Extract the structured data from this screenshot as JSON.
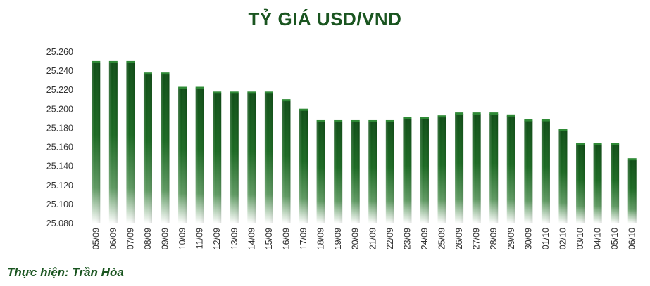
{
  "chart_data": {
    "type": "bar",
    "title": "TỶ GIÁ USD/VND",
    "xlabel": "",
    "ylabel": "",
    "ylim": [
      25080,
      25260
    ],
    "yticks": [
      "25.260",
      "25.240",
      "25.220",
      "25.200",
      "25.180",
      "25.160",
      "25.140",
      "25.120",
      "25.100",
      "25.080"
    ],
    "grid": false,
    "legend": "none",
    "categories": [
      "05/09",
      "06/09",
      "07/09",
      "08/09",
      "09/09",
      "10/09",
      "11/09",
      "12/09",
      "13/09",
      "14/09",
      "15/09",
      "16/09",
      "17/09",
      "18/09",
      "19/09",
      "20/09",
      "21/09",
      "22/09",
      "23/09",
      "24/09",
      "25/09",
      "26/09",
      "27/09",
      "28/09",
      "29/09",
      "30/09",
      "01/10",
      "02/10",
      "03/10",
      "04/10",
      "05/10",
      "06/10"
    ],
    "values": [
      25249,
      25249,
      25249,
      25237,
      25237,
      25222,
      25222,
      25217,
      25217,
      25217,
      25217,
      25209,
      25199,
      25187,
      25187,
      25187,
      25187,
      25187,
      25190,
      25190,
      25192,
      25195,
      25195,
      25195,
      25193,
      25188,
      25188,
      25178,
      25163,
      25163,
      25163,
      25147
    ],
    "colors": {
      "bar_top": "#145c1c",
      "bar_fade": "#ffffff",
      "title": "#1a5520",
      "text": "#333333"
    }
  },
  "credit": "Thực hiện: Trần Hòa"
}
